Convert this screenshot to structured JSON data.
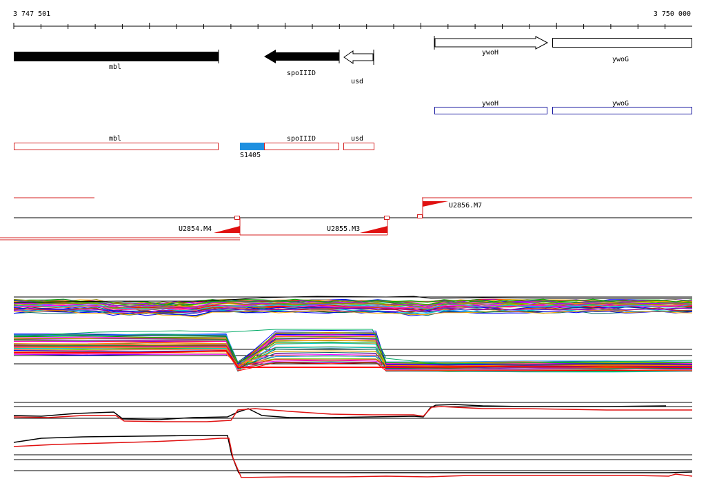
{
  "ruler": {
    "start_label": "3 747 501",
    "end_label": "3 750 000"
  },
  "genes": [
    {
      "label": "mbl",
      "style": "solid",
      "strand": "none"
    },
    {
      "label": "spoIIID",
      "style": "solid",
      "strand": "reverse"
    },
    {
      "label": "usd",
      "style": "outline",
      "strand": "reverse"
    },
    {
      "label": "ywoH",
      "style": "outline",
      "strand": "forward"
    },
    {
      "label": "ywoG",
      "style": "outline",
      "strand": "none"
    }
  ],
  "blue_track": [
    {
      "label": "ywoH"
    },
    {
      "label": "ywoG"
    }
  ],
  "red_track": [
    {
      "label": "mbl"
    },
    {
      "label": "spoIIID"
    },
    {
      "label": "usd"
    }
  ],
  "segment_marker": {
    "label": "S1405",
    "color": "#1e90e0"
  },
  "transcription_units": [
    {
      "label": "U2856.M7"
    },
    {
      "label": "U2854.M4"
    },
    {
      "label": "U2855.M3"
    }
  ],
  "colors": {
    "gene_fill": "#000000",
    "blue_outline": "#1a1aa0",
    "red_outline": "#d42020",
    "profile_red": "#e01010"
  }
}
